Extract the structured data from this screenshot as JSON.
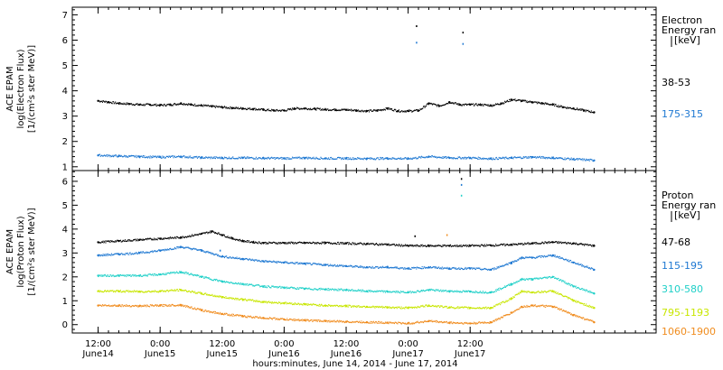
{
  "chart_data": [
    {
      "type": "scatter",
      "panel": "electron",
      "ylabel_lines": [
        "ACE EPAM",
        "log(Electron Flux)",
        "[1/(cm²s ster MeV)]"
      ],
      "yticks": [
        1,
        2,
        3,
        4,
        5,
        6,
        7
      ],
      "ylim": [
        0.85,
        7.3
      ],
      "legend_title": [
        "Electron",
        "Energy ran",
        "[keV]"
      ],
      "series": [
        {
          "name": "38-53",
          "color": "#000000",
          "x": [
            0,
            2,
            4,
            6,
            8,
            10,
            12,
            14,
            16,
            18,
            20,
            22,
            24,
            26,
            28,
            30,
            32,
            34,
            36,
            38,
            40,
            42,
            44,
            46,
            48,
            50,
            52,
            54,
            56,
            58,
            60,
            62,
            64,
            66,
            68,
            70,
            72,
            74,
            76,
            78,
            80,
            82,
            84,
            86,
            88,
            90,
            92,
            94,
            96
          ],
          "y": [
            3.6,
            3.55,
            3.5,
            3.48,
            3.45,
            3.45,
            3.43,
            3.45,
            3.5,
            3.45,
            3.42,
            3.38,
            3.35,
            3.32,
            3.3,
            3.28,
            3.25,
            3.22,
            3.22,
            3.3,
            3.3,
            3.28,
            3.26,
            3.25,
            3.25,
            3.22,
            3.2,
            3.22,
            3.3,
            3.2,
            3.2,
            3.22,
            3.5,
            3.4,
            3.55,
            3.45,
            3.45,
            3.45,
            3.42,
            3.5,
            3.65,
            3.6,
            3.55,
            3.5,
            3.45,
            3.35,
            3.3,
            3.22,
            3.15
          ]
        },
        {
          "name": "175-315",
          "color": "#1e78d2",
          "x": [
            0,
            4,
            8,
            12,
            16,
            20,
            24,
            28,
            32,
            36,
            40,
            44,
            48,
            52,
            56,
            60,
            64,
            68,
            72,
            76,
            80,
            84,
            88,
            92,
            96
          ],
          "y": [
            1.45,
            1.42,
            1.4,
            1.38,
            1.4,
            1.36,
            1.35,
            1.35,
            1.34,
            1.33,
            1.35,
            1.33,
            1.33,
            1.32,
            1.33,
            1.32,
            1.4,
            1.35,
            1.35,
            1.32,
            1.35,
            1.38,
            1.35,
            1.3,
            1.25
          ]
        }
      ],
      "spikes": [
        {
          "x": 61.5,
          "y": 6.55,
          "color": "#000000"
        },
        {
          "x": 61.5,
          "y": 5.9,
          "color": "#1e78d2"
        },
        {
          "x": 70.5,
          "y": 6.3,
          "color": "#000000"
        },
        {
          "x": 70.5,
          "y": 5.85,
          "color": "#1e78d2"
        }
      ]
    },
    {
      "type": "scatter",
      "panel": "proton",
      "ylabel_lines": [
        "ACE EPAM",
        "log(Proton Flux)",
        "[1/(cm²s ster MeV)]"
      ],
      "yticks": [
        0,
        1,
        2,
        3,
        4,
        5,
        6
      ],
      "ylim": [
        -0.35,
        6.45
      ],
      "legend_title": [
        "Proton",
        "Energy ran",
        "[keV]"
      ],
      "series": [
        {
          "name": "47-68",
          "color": "#000000",
          "x": [
            0,
            4,
            8,
            12,
            16,
            20,
            22,
            24,
            26,
            28,
            30,
            32,
            36,
            40,
            44,
            48,
            52,
            56,
            60,
            64,
            68,
            72,
            76,
            80,
            84,
            88,
            92,
            96
          ],
          "y": [
            3.45,
            3.5,
            3.55,
            3.6,
            3.65,
            3.8,
            3.9,
            3.75,
            3.6,
            3.5,
            3.45,
            3.42,
            3.42,
            3.42,
            3.42,
            3.4,
            3.38,
            3.35,
            3.3,
            3.3,
            3.3,
            3.3,
            3.32,
            3.35,
            3.4,
            3.45,
            3.4,
            3.3
          ]
        },
        {
          "name": "115-195",
          "color": "#1e78d2",
          "x": [
            0,
            4,
            8,
            12,
            16,
            20,
            24,
            28,
            32,
            36,
            40,
            44,
            48,
            52,
            56,
            60,
            64,
            68,
            72,
            76,
            80,
            82,
            84,
            88,
            92,
            96
          ],
          "y": [
            2.9,
            2.95,
            3.0,
            3.1,
            3.25,
            3.1,
            2.85,
            2.75,
            2.65,
            2.6,
            2.55,
            2.5,
            2.45,
            2.4,
            2.4,
            2.35,
            2.4,
            2.35,
            2.35,
            2.3,
            2.6,
            2.8,
            2.8,
            2.9,
            2.6,
            2.3
          ]
        },
        {
          "name": "310-580",
          "color": "#20d0c8",
          "x": [
            0,
            4,
            8,
            12,
            16,
            20,
            24,
            28,
            32,
            36,
            40,
            44,
            48,
            52,
            56,
            60,
            64,
            68,
            72,
            76,
            80,
            82,
            84,
            88,
            92,
            96
          ],
          "y": [
            2.05,
            2.05,
            2.05,
            2.1,
            2.2,
            2.0,
            1.8,
            1.7,
            1.6,
            1.55,
            1.5,
            1.48,
            1.45,
            1.4,
            1.38,
            1.35,
            1.45,
            1.4,
            1.38,
            1.35,
            1.7,
            1.9,
            1.9,
            2.0,
            1.6,
            1.3
          ]
        },
        {
          "name": "795-1193",
          "color": "#c8e600",
          "x": [
            0,
            4,
            8,
            12,
            16,
            20,
            24,
            28,
            32,
            36,
            40,
            44,
            48,
            52,
            56,
            60,
            64,
            68,
            72,
            76,
            80,
            82,
            84,
            88,
            92,
            96
          ],
          "y": [
            1.4,
            1.4,
            1.38,
            1.4,
            1.45,
            1.3,
            1.15,
            1.05,
            0.95,
            0.9,
            0.85,
            0.8,
            0.78,
            0.75,
            0.72,
            0.7,
            0.8,
            0.72,
            0.7,
            0.7,
            1.1,
            1.4,
            1.35,
            1.4,
            1.0,
            0.7
          ]
        },
        {
          "name": "1060-1900",
          "color": "#f08c1e",
          "x": [
            0,
            4,
            8,
            12,
            16,
            20,
            24,
            28,
            32,
            36,
            40,
            44,
            48,
            52,
            56,
            60,
            64,
            68,
            72,
            76,
            80,
            82,
            84,
            88,
            92,
            96
          ],
          "y": [
            0.8,
            0.8,
            0.78,
            0.8,
            0.82,
            0.6,
            0.45,
            0.35,
            0.28,
            0.22,
            0.18,
            0.15,
            0.12,
            0.1,
            0.08,
            0.05,
            0.15,
            0.08,
            0.05,
            0.1,
            0.5,
            0.75,
            0.8,
            0.75,
            0.4,
            0.1
          ]
        }
      ],
      "spikes": [
        {
          "x": 61.2,
          "y": 3.7,
          "color": "#000000"
        },
        {
          "x": 67.4,
          "y": 3.75,
          "color": "#f08c1e"
        },
        {
          "x": 70.2,
          "y": 6.1,
          "color": "#000000"
        },
        {
          "x": 70.2,
          "y": 5.85,
          "color": "#1e78d2"
        },
        {
          "x": 70.2,
          "y": 5.4,
          "color": "#20d0c8"
        },
        {
          "x": 23.5,
          "y": 3.1,
          "color": "#1e78d2"
        }
      ]
    }
  ],
  "x_axis": {
    "xlim": [
      -5,
      108
    ],
    "ticks": [
      {
        "x": 0,
        "line1": "12:00",
        "line2": "June14"
      },
      {
        "x": 12,
        "line1": "0:00",
        "line2": "June15"
      },
      {
        "x": 24,
        "line1": "12:00",
        "line2": "June15"
      },
      {
        "x": 36,
        "line1": "0:00",
        "line2": "June16"
      },
      {
        "x": 48,
        "line1": "12:00",
        "line2": "June16"
      },
      {
        "x": 60,
        "line1": "0:00",
        "line2": "June17"
      },
      {
        "x": 72,
        "line1": "12:00",
        "line2": "June17"
      }
    ],
    "label": "hours:minutes, June 14, 2014 - June 17, 2014"
  }
}
